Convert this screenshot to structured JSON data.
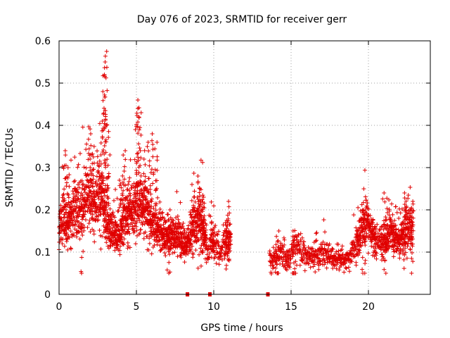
{
  "chart_data": {
    "type": "scatter",
    "title": "Day 076 of 2023, SRMTID for receiver gerr",
    "xlabel": "GPS time / hours",
    "ylabel": "SRMTID / TECUs",
    "xlim": [
      0,
      24
    ],
    "ylim": [
      0,
      0.6
    ],
    "xticks": [
      0,
      5,
      10,
      15,
      20
    ],
    "xtick_labels": [
      "0",
      "5",
      "10",
      "15",
      "20"
    ],
    "yticks": [
      0,
      0.1,
      0.2,
      0.3,
      0.4,
      0.5,
      0.6
    ],
    "ytick_labels": [
      "0",
      "0.1",
      "0.2",
      "0.3",
      "0.4",
      "0.5",
      "0.6"
    ],
    "grid": true,
    "marker": "plus",
    "color": "#e00000",
    "series": [
      {
        "name": "SRMTID",
        "trend": [
          [
            0.0,
            0.15
          ],
          [
            0.3,
            0.19
          ],
          [
            0.6,
            0.17
          ],
          [
            0.9,
            0.2
          ],
          [
            1.2,
            0.2
          ],
          [
            1.5,
            0.2
          ],
          [
            1.8,
            0.24
          ],
          [
            2.1,
            0.23
          ],
          [
            2.4,
            0.21
          ],
          [
            2.7,
            0.25
          ],
          [
            3.0,
            0.18
          ],
          [
            3.3,
            0.15
          ],
          [
            3.6,
            0.14
          ],
          [
            3.9,
            0.14
          ],
          [
            4.2,
            0.18
          ],
          [
            4.5,
            0.2
          ],
          [
            4.8,
            0.19
          ],
          [
            5.1,
            0.22
          ],
          [
            5.4,
            0.21
          ],
          [
            5.7,
            0.19
          ],
          [
            6.0,
            0.17
          ],
          [
            6.3,
            0.15
          ],
          [
            6.6,
            0.15
          ],
          [
            6.9,
            0.14
          ],
          [
            7.2,
            0.14
          ],
          [
            7.5,
            0.14
          ],
          [
            7.8,
            0.13
          ],
          [
            8.1,
            0.12
          ],
          [
            8.4,
            0.13
          ],
          [
            8.7,
            0.17
          ],
          [
            9.0,
            0.18
          ],
          [
            9.3,
            0.16
          ],
          [
            9.6,
            0.1
          ],
          [
            9.9,
            0.13
          ],
          [
            10.2,
            0.11
          ],
          [
            10.5,
            0.1
          ],
          [
            10.8,
            0.13
          ],
          [
            11.1,
            0.13
          ],
          [
            13.6,
            0.09
          ],
          [
            13.9,
            0.08
          ],
          [
            14.2,
            0.1
          ],
          [
            14.5,
            0.09
          ],
          [
            14.8,
            0.08
          ],
          [
            15.1,
            0.1
          ],
          [
            15.4,
            0.11
          ],
          [
            15.7,
            0.1
          ],
          [
            16.0,
            0.09
          ],
          [
            16.3,
            0.09
          ],
          [
            16.6,
            0.09
          ],
          [
            16.9,
            0.09
          ],
          [
            17.2,
            0.1
          ],
          [
            17.5,
            0.09
          ],
          [
            17.8,
            0.08
          ],
          [
            18.1,
            0.08
          ],
          [
            18.4,
            0.08
          ],
          [
            18.7,
            0.08
          ],
          [
            19.0,
            0.1
          ],
          [
            19.3,
            0.13
          ],
          [
            19.6,
            0.16
          ],
          [
            19.9,
            0.17
          ],
          [
            20.2,
            0.15
          ],
          [
            20.5,
            0.12
          ],
          [
            20.8,
            0.12
          ],
          [
            21.1,
            0.13
          ],
          [
            21.4,
            0.15
          ],
          [
            21.7,
            0.13
          ],
          [
            22.0,
            0.12
          ],
          [
            22.3,
            0.15
          ],
          [
            22.6,
            0.15
          ],
          [
            22.9,
            0.16
          ]
        ],
        "peaks": [
          [
            0.4,
            0.34
          ],
          [
            0.6,
            0.3
          ],
          [
            1.5,
            0.25
          ],
          [
            2.0,
            0.38
          ],
          [
            2.2,
            0.35
          ],
          [
            2.7,
            0.33
          ],
          [
            2.85,
            0.41
          ],
          [
            2.9,
            0.48
          ],
          [
            2.95,
            0.55
          ],
          [
            3.0,
            0.575
          ],
          [
            3.1,
            0.4
          ],
          [
            3.2,
            0.33
          ],
          [
            4.0,
            0.27
          ],
          [
            4.2,
            0.34
          ],
          [
            4.5,
            0.26
          ],
          [
            5.0,
            0.44
          ],
          [
            5.1,
            0.46
          ],
          [
            5.2,
            0.43
          ],
          [
            5.5,
            0.32
          ],
          [
            5.8,
            0.36
          ],
          [
            6.0,
            0.38
          ],
          [
            6.3,
            0.36
          ],
          [
            7.1,
            0.2
          ],
          [
            8.7,
            0.26
          ],
          [
            9.0,
            0.28
          ],
          [
            9.2,
            0.25
          ],
          [
            9.4,
            0.23
          ],
          [
            10.9,
            0.22
          ],
          [
            14.1,
            0.15
          ],
          [
            15.2,
            0.15
          ],
          [
            19.7,
            0.2
          ],
          [
            21.1,
            0.24
          ],
          [
            22.3,
            0.24
          ],
          [
            22.8,
            0.22
          ]
        ],
        "zero_markers": [
          8.3,
          9.75,
          13.5
        ]
      }
    ]
  }
}
